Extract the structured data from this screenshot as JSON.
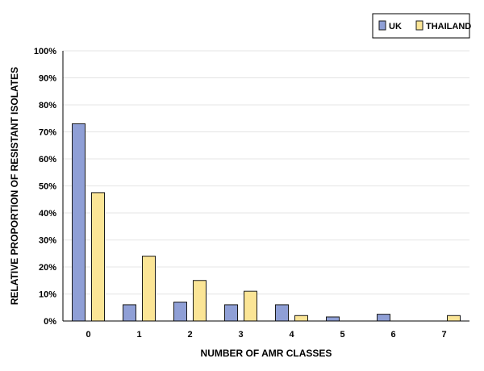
{
  "chart_data": {
    "type": "bar",
    "categories": [
      "0",
      "1",
      "2",
      "3",
      "4",
      "5",
      "6",
      "7"
    ],
    "series": [
      {
        "name": "UK",
        "values": [
          73,
          6,
          7,
          6,
          6,
          1.5,
          2.5,
          0
        ],
        "color": "#8f9fd6"
      },
      {
        "name": "THAILAND",
        "values": [
          47.5,
          24,
          15,
          11,
          2,
          0,
          0,
          2
        ],
        "color": "#fbe596"
      }
    ],
    "xlabel": "NUMBER OF AMR CLASSES",
    "ylabel": "RELATIVE PROPORTION OF RESISTANT ISOLATES",
    "ylim": [
      0,
      100
    ],
    "yticks": [
      "0%",
      "10%",
      "20%",
      "30%",
      "40%",
      "50%",
      "60%",
      "70%",
      "80%",
      "90%",
      "100%"
    ],
    "grid": true,
    "legend_position": "top-right",
    "bar_border_color": "#1a1a1a"
  }
}
